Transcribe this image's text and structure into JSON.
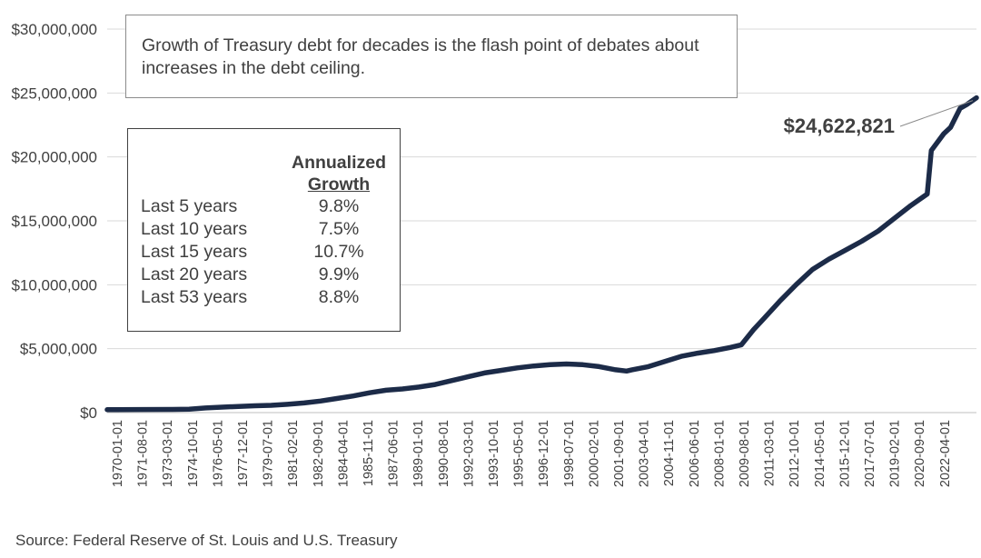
{
  "note": "Growth of Treasury debt for decades is the flash point of debates about increases in the debt ceiling.",
  "growth_table": {
    "header_line1": "Annualized",
    "header_line2": "Growth",
    "rows": [
      {
        "period": "Last 5 years",
        "rate": "9.8%"
      },
      {
        "period": "Last 10 years",
        "rate": "7.5%"
      },
      {
        "period": "Last 15 years",
        "rate": "10.7%"
      },
      {
        "period": "Last 20 years",
        "rate": "9.9%"
      },
      {
        "period": "Last 53 years",
        "rate": "8.8%"
      }
    ]
  },
  "source": "Source: Federal Reserve of St. Louis and U.S. Treasury",
  "colors": {
    "line": "#1c2b48",
    "grid": "#d9d9d9",
    "text": "#404040"
  },
  "chart_data": {
    "type": "line",
    "title": "",
    "xlabel": "",
    "ylabel": "",
    "ylim": [
      0,
      30000000
    ],
    "xlim": [
      "1970-01-01",
      "2023-01-01"
    ],
    "grid": "horizontal",
    "yticks": [
      {
        "value": 0,
        "label": "$0"
      },
      {
        "value": 5000000,
        "label": "$5,000,000"
      },
      {
        "value": 10000000,
        "label": "$10,000,000"
      },
      {
        "value": 15000000,
        "label": "$15,000,000"
      },
      {
        "value": 20000000,
        "label": "$20,000,000"
      },
      {
        "value": 25000000,
        "label": "$25,000,000"
      },
      {
        "value": 30000000,
        "label": "$30,000,000"
      }
    ],
    "xtick_labels": [
      "1970-01-01",
      "1971-08-01",
      "1973-03-01",
      "1974-10-01",
      "1976-05-01",
      "1977-12-01",
      "1979-07-01",
      "1981-02-01",
      "1982-09-01",
      "1984-04-01",
      "1985-11-01",
      "1987-06-01",
      "1989-01-01",
      "1990-08-01",
      "1992-03-01",
      "1993-10-01",
      "1995-05-01",
      "1996-12-01",
      "1998-07-01",
      "2000-02-01",
      "2001-09-01",
      "2003-04-01",
      "2004-11-01",
      "2006-06-01",
      "2008-01-01",
      "2009-08-01",
      "2011-03-01",
      "2012-10-01",
      "2014-05-01",
      "2015-12-01",
      "2017-07-01",
      "2019-02-01",
      "2020-09-01",
      "2022-04-01"
    ],
    "end_label": "$24,622,821",
    "series": [
      {
        "name": "",
        "points": [
          [
            "1970-01-01",
            230000
          ],
          [
            "1972-01-01",
            240000
          ],
          [
            "1974-01-01",
            250000
          ],
          [
            "1975-01-01",
            270000
          ],
          [
            "1976-01-01",
            360000
          ],
          [
            "1977-01-01",
            430000
          ],
          [
            "1978-01-01",
            480000
          ],
          [
            "1979-01-01",
            530000
          ],
          [
            "1980-01-01",
            570000
          ],
          [
            "1981-01-01",
            650000
          ],
          [
            "1982-01-01",
            750000
          ],
          [
            "1983-01-01",
            900000
          ],
          [
            "1984-01-01",
            1100000
          ],
          [
            "1985-01-01",
            1300000
          ],
          [
            "1986-01-01",
            1550000
          ],
          [
            "1987-01-01",
            1750000
          ],
          [
            "1988-01-01",
            1850000
          ],
          [
            "1989-01-01",
            2000000
          ],
          [
            "1990-01-01",
            2200000
          ],
          [
            "1991-01-01",
            2500000
          ],
          [
            "1992-01-01",
            2800000
          ],
          [
            "1993-01-01",
            3100000
          ],
          [
            "1994-01-01",
            3300000
          ],
          [
            "1995-01-01",
            3500000
          ],
          [
            "1996-01-01",
            3650000
          ],
          [
            "1997-01-01",
            3750000
          ],
          [
            "1998-01-01",
            3800000
          ],
          [
            "1999-01-01",
            3750000
          ],
          [
            "2000-01-01",
            3600000
          ],
          [
            "2001-01-01",
            3350000
          ],
          [
            "2001-09-01",
            3250000
          ],
          [
            "2002-01-01",
            3350000
          ],
          [
            "2003-01-01",
            3600000
          ],
          [
            "2004-01-01",
            4000000
          ],
          [
            "2005-01-01",
            4400000
          ],
          [
            "2006-01-01",
            4650000
          ],
          [
            "2007-01-01",
            4850000
          ],
          [
            "2008-01-01",
            5100000
          ],
          [
            "2008-09-01",
            5300000
          ],
          [
            "2009-06-01",
            6500000
          ],
          [
            "2010-01-01",
            7300000
          ],
          [
            "2011-01-01",
            8700000
          ],
          [
            "2012-01-01",
            10000000
          ],
          [
            "2013-01-01",
            11200000
          ],
          [
            "2014-01-01",
            12000000
          ],
          [
            "2015-01-01",
            12700000
          ],
          [
            "2016-01-01",
            13400000
          ],
          [
            "2017-01-01",
            14200000
          ],
          [
            "2018-01-01",
            15200000
          ],
          [
            "2019-01-01",
            16200000
          ],
          [
            "2020-01-01",
            17100000
          ],
          [
            "2020-04-01",
            20500000
          ],
          [
            "2021-01-01",
            21800000
          ],
          [
            "2021-06-01",
            22300000
          ],
          [
            "2022-01-01",
            23800000
          ],
          [
            "2022-06-01",
            24100000
          ],
          [
            "2023-01-01",
            24622821
          ]
        ]
      }
    ]
  }
}
